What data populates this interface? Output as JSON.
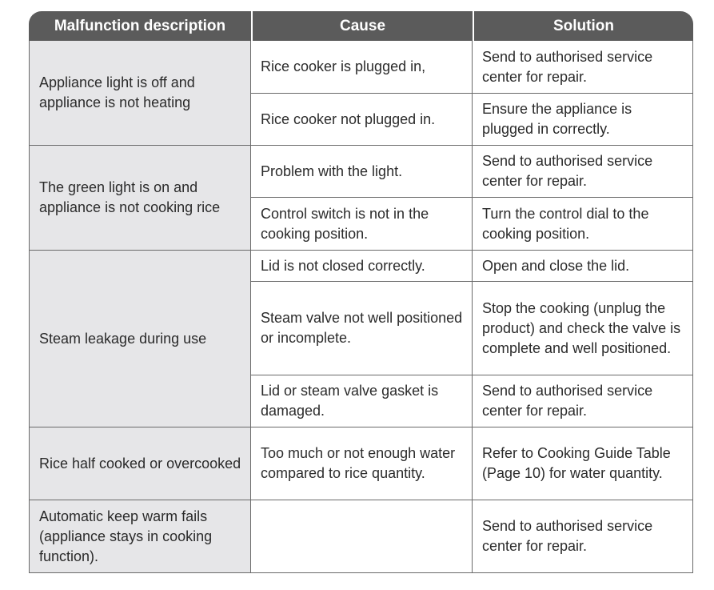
{
  "headers": [
    "Malfunction description",
    "Cause",
    "Solution"
  ],
  "rows": [
    {
      "desc": "Appliance light is off and appliance is not heating",
      "items": [
        {
          "cause": "Rice cooker is plugged in,",
          "solution": "Send to authorised service center for repair."
        },
        {
          "cause": "Rice cooker not plugged in.",
          "solution": "Ensure the appliance is plugged in correctly."
        }
      ]
    },
    {
      "desc": "The green light is on and appliance is not cooking rice",
      "items": [
        {
          "cause": "Problem with the light.",
          "solution": "Send to authorised service center for repair."
        },
        {
          "cause": "Control switch is not in the cooking position.",
          "solution": "Turn the control dial to the cooking position."
        }
      ]
    },
    {
      "desc": "Steam leakage during use",
      "items": [
        {
          "cause": "Lid is not closed correctly.",
          "solution": "Open and close the lid."
        },
        {
          "cause": "Steam valve not well positioned or incomplete.",
          "solution": "Stop the cooking (unplug the product) and check the valve is complete and well positioned."
        },
        {
          "cause": "Lid or steam valve gasket is damaged.",
          "solution": "Send to authorised service center for repair."
        }
      ]
    },
    {
      "desc": "Rice half cooked or overcooked",
      "items": [
        {
          "cause": "Too much or not enough water compared to rice quantity.",
          "solution": "Refer to Cooking Guide Table (Page 10) for water quantity."
        }
      ]
    },
    {
      "desc": "Automatic keep warm fails (appliance stays in cooking function).",
      "items": [
        {
          "cause": "",
          "solution": "Send to authorised service center for repair."
        }
      ]
    }
  ]
}
